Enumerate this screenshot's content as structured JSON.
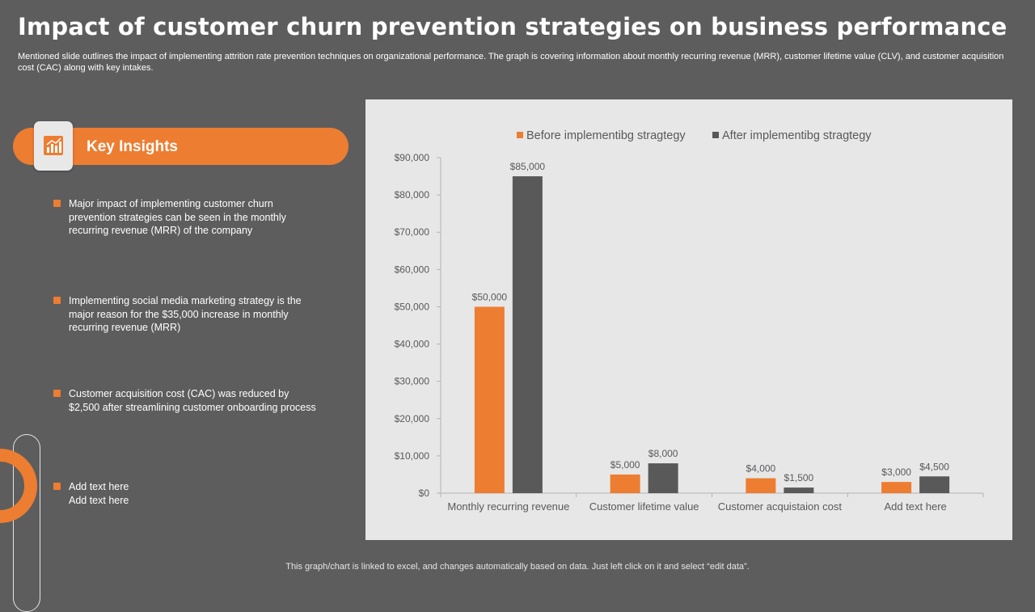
{
  "page": {
    "title": "Impact of customer churn prevention strategies on business performance",
    "subtitle": "Mentioned slide outlines the impact of implementing attrition rate prevention techniques on organizational performance. The graph is covering information about monthly recurring revenue (MRR), customer lifetime value (CLV), and customer acquisition cost (CAC) along with key intakes.",
    "footer": "This graph/chart is linked to excel,  and changes automatically based on data. Just left click on it and select “edit data”."
  },
  "insights": {
    "heading": "Key Insights",
    "icon": "bar-chart-icon",
    "items": [
      "Major impact of implementing customer churn prevention  strategies can be seen in the monthly recurring revenue  (MRR)  of the company",
      "Implementing  social media  marketing strategy is the major reason for the $35,000 increase in monthly recurring revenue  (MRR)",
      "Customer acquisition cost (CAC) was reduced by $2,500 after streamlining customer onboarding  process",
      "Add text here\nAdd text here"
    ]
  },
  "colors": {
    "accent": "#ed7d31",
    "background": "#5d5d5d",
    "series_after": "#595959",
    "panel": "#e7e7e7"
  },
  "chart_data": {
    "type": "bar",
    "categories": [
      "Monthly recurring revenue",
      "Customer lifetime value",
      "Customer acquistaion cost",
      "Add text here"
    ],
    "series": [
      {
        "name": "Before implementibg stragtegy",
        "values": [
          50000,
          5000,
          4000,
          3000
        ],
        "labels": [
          "$50,000",
          "$5,000",
          "$4,000",
          "$3,000"
        ],
        "color": "#ed7d31"
      },
      {
        "name": "After implementibg stragtegy",
        "values": [
          85000,
          8000,
          1500,
          4500
        ],
        "labels": [
          "$85,000",
          "$8,000",
          "$1,500",
          "$4,500"
        ],
        "color": "#595959"
      }
    ],
    "ylim": [
      0,
      90000
    ],
    "yticks": [
      0,
      10000,
      20000,
      30000,
      40000,
      50000,
      60000,
      70000,
      80000,
      90000
    ],
    "ytick_labels": [
      "$0",
      "$10,000",
      "$20,000",
      "$30,000",
      "$40,000",
      "$50,000",
      "$60,000",
      "$70,000",
      "$80,000",
      "$90,000"
    ],
    "legend_position": "top",
    "grid": false
  }
}
